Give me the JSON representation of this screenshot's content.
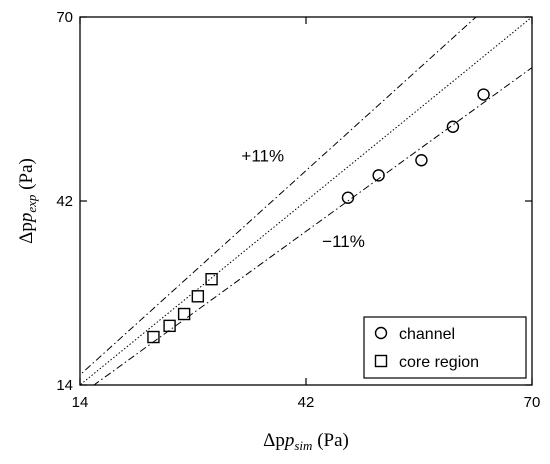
{
  "chart_data": {
    "type": "scatter",
    "xlabel": {
      "main": "Δp",
      "sub": "sim",
      "unit": " (Pa)"
    },
    "ylabel": {
      "main": "Δp",
      "sub": "exp",
      "unit": " (Pa)"
    },
    "xlim": [
      14,
      70
    ],
    "ylim": [
      14,
      70
    ],
    "xticks": [
      14,
      42,
      70
    ],
    "yticks": [
      14,
      42,
      70
    ],
    "grid": false,
    "legend_position": "bottom-right",
    "series": [
      {
        "name": "channel",
        "marker": "circle",
        "x": [
          47.2,
          51.0,
          56.3,
          60.2,
          64.0
        ],
        "y": [
          42.5,
          45.9,
          48.2,
          53.3,
          58.2
        ]
      },
      {
        "name": "core region",
        "marker": "square",
        "x": [
          23.1,
          25.1,
          26.9,
          28.6,
          30.3
        ],
        "y": [
          21.3,
          23.0,
          24.8,
          27.5,
          30.1
        ]
      }
    ],
    "reference_lines": [
      {
        "kind": "parity",
        "slope": 1.0,
        "style": "dotted"
      },
      {
        "kind": "upper",
        "slope": 1.11,
        "style": "dash-dot"
      },
      {
        "kind": "lower",
        "slope": 0.89,
        "style": "dash-dot"
      }
    ],
    "annotations": [
      {
        "text": "+11%",
        "x": 34,
        "y": 48
      },
      {
        "text": "−11%",
        "x": 44,
        "y": 35
      }
    ]
  }
}
